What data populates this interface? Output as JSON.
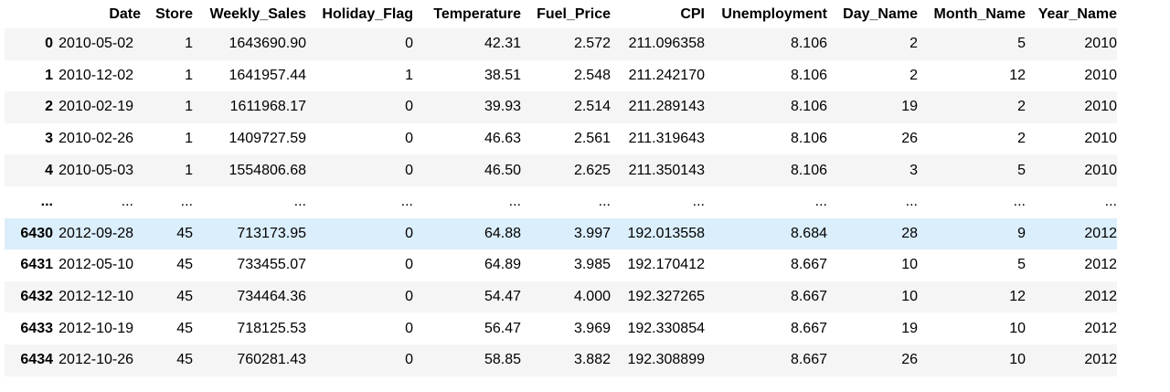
{
  "dataframe": {
    "columns": [
      "",
      "Date",
      "Store",
      "Weekly_Sales",
      "Holiday_Flag",
      "Temperature",
      "Fuel_Price",
      "CPI",
      "Unemployment",
      "Day_Name",
      "Month_Name",
      "Year_Name"
    ],
    "rows": [
      {
        "index": "0",
        "cells": [
          "2010-05-02",
          "1",
          "1643690.90",
          "0",
          "42.31",
          "2.572",
          "211.096358",
          "8.106",
          "2",
          "5",
          "2010"
        ]
      },
      {
        "index": "1",
        "cells": [
          "2010-12-02",
          "1",
          "1641957.44",
          "1",
          "38.51",
          "2.548",
          "211.242170",
          "8.106",
          "2",
          "12",
          "2010"
        ]
      },
      {
        "index": "2",
        "cells": [
          "2010-02-19",
          "1",
          "1611968.17",
          "0",
          "39.93",
          "2.514",
          "211.289143",
          "8.106",
          "19",
          "2",
          "2010"
        ]
      },
      {
        "index": "3",
        "cells": [
          "2010-02-26",
          "1",
          "1409727.59",
          "0",
          "46.63",
          "2.561",
          "211.319643",
          "8.106",
          "26",
          "2",
          "2010"
        ]
      },
      {
        "index": "4",
        "cells": [
          "2010-05-03",
          "1",
          "1554806.68",
          "0",
          "46.50",
          "2.625",
          "211.350143",
          "8.106",
          "3",
          "5",
          "2010"
        ]
      },
      {
        "index": "...",
        "cells": [
          "...",
          "...",
          "...",
          "...",
          "...",
          "...",
          "...",
          "...",
          "...",
          "...",
          "..."
        ]
      },
      {
        "index": "6430",
        "cells": [
          "2012-09-28",
          "45",
          "713173.95",
          "0",
          "64.88",
          "3.997",
          "192.013558",
          "8.684",
          "28",
          "9",
          "2012"
        ]
      },
      {
        "index": "6431",
        "cells": [
          "2012-05-10",
          "45",
          "733455.07",
          "0",
          "64.89",
          "3.985",
          "192.170412",
          "8.667",
          "10",
          "5",
          "2012"
        ]
      },
      {
        "index": "6432",
        "cells": [
          "2012-12-10",
          "45",
          "734464.36",
          "0",
          "54.47",
          "4.000",
          "192.327265",
          "8.667",
          "10",
          "12",
          "2012"
        ]
      },
      {
        "index": "6433",
        "cells": [
          "2012-10-19",
          "45",
          "718125.53",
          "0",
          "56.47",
          "3.969",
          "192.330854",
          "8.667",
          "19",
          "10",
          "2012"
        ]
      },
      {
        "index": "6434",
        "cells": [
          "2012-10-26",
          "45",
          "760281.43",
          "0",
          "58.85",
          "3.882",
          "192.308899",
          "8.667",
          "26",
          "10",
          "2012"
        ]
      }
    ]
  },
  "colors": {
    "stripe": "#f5f5f5",
    "hover_row": "#dbeefb"
  }
}
